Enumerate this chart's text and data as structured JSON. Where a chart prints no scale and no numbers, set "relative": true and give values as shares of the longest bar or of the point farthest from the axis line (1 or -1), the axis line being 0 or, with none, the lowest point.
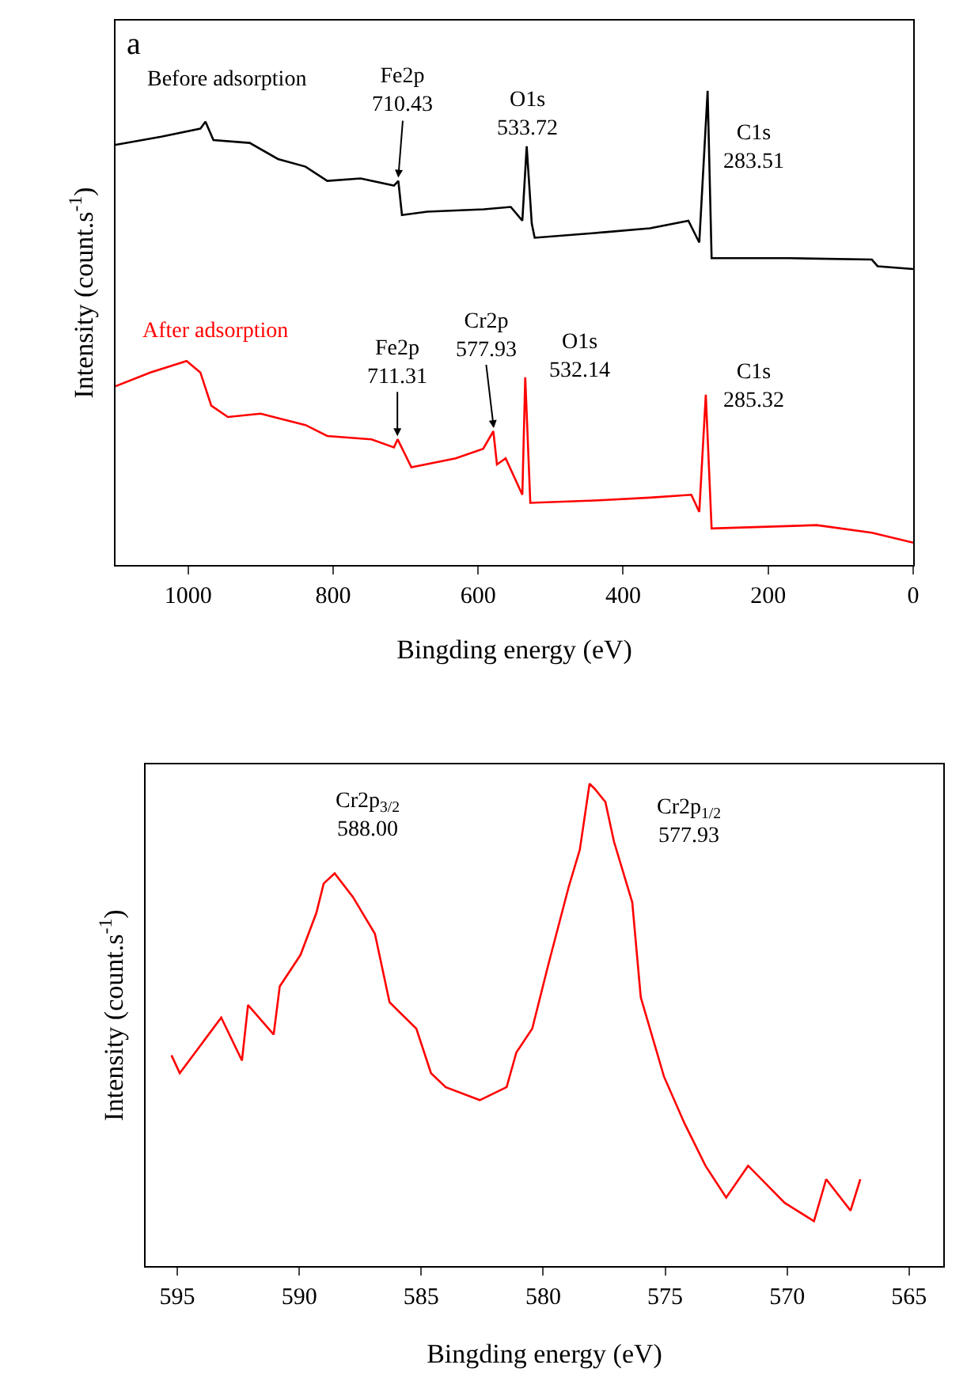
{
  "chart_data": [
    {
      "type": "line",
      "relative": true,
      "xlabel": "Bingding energy (eV)",
      "ylabel": "Intensity (count.s$^{-1}$)",
      "xlim": [
        1100,
        0
      ],
      "xticks": [
        1000,
        800,
        600,
        400,
        200,
        0
      ],
      "annotations": [
        "a",
        {
          "text": "Fe2p\n710.43",
          "x": 710.43,
          "y": 0.81
        },
        {
          "text": "O1s\n533.72",
          "x": 533.72,
          "y": 0.883
        },
        {
          "text": "C1s\n283.51",
          "x": 283.51,
          "y": 1.0
        },
        {
          "text": "Fe2p\n711.31",
          "x": 711.31,
          "y": 0.265
        },
        {
          "text": "Cr2p\n577.93",
          "x": 577.93,
          "y": 0.282
        },
        {
          "text": "O1s\n532.14",
          "x": 532.14,
          "y": 0.396
        },
        {
          "text": "C1s\n285.32",
          "x": 285.32,
          "y": 0.359
        }
      ],
      "series": [
        {
          "name": "Before adsorption",
          "color": "#000000",
          "x": [
            1100,
            1037,
            983,
            976,
            965,
            915,
            876,
            838,
            808,
            762,
            716,
            710,
            705,
            670,
            592,
            555,
            539,
            533,
            526,
            522,
            439,
            363,
            310,
            295,
            283.5,
            278,
            171,
            57,
            49,
            0
          ],
          "values": [
            0.886,
            0.903,
            0.92,
            0.935,
            0.896,
            0.89,
            0.856,
            0.84,
            0.81,
            0.815,
            0.8,
            0.81,
            0.738,
            0.745,
            0.75,
            0.755,
            0.726,
            0.883,
            0.72,
            0.69,
            0.7,
            0.71,
            0.726,
            0.68,
            1.0,
            0.647,
            0.647,
            0.644,
            0.63,
            0.624
          ]
        },
        {
          "name": "After adsorption",
          "color": "#ff0000",
          "x": [
            1100,
            1052,
            1002,
            983,
            968,
            945,
            900,
            838,
            808,
            747,
            716,
            711,
            692,
            631,
            593,
            579,
            574,
            562,
            539,
            535,
            528,
            439,
            363,
            306,
            295,
            286,
            278,
            133,
            57,
            0
          ],
          "values": [
            0.377,
            0.406,
            0.43,
            0.406,
            0.336,
            0.312,
            0.319,
            0.295,
            0.272,
            0.265,
            0.248,
            0.265,
            0.206,
            0.225,
            0.245,
            0.282,
            0.212,
            0.225,
            0.148,
            0.396,
            0.131,
            0.136,
            0.142,
            0.148,
            0.112,
            0.359,
            0.077,
            0.084,
            0.068,
            0.047
          ]
        }
      ]
    },
    {
      "type": "line",
      "relative": true,
      "xlabel": "Bingding energy (eV)",
      "ylabel": "Intensity (count.s$^{-1}$)",
      "xlim": [
        596.3,
        563.6
      ],
      "xticks": [
        595,
        590,
        585,
        580,
        575,
        570,
        565
      ],
      "annotations": [
        "Cr2p$_{3/2}$\n588.00",
        {
          "text": "Cr2p$_{1/2}$\n577.93",
          "x": 577.93,
          "y": 0.99
        }
      ],
      "series": [
        {
          "color": "#ff0000",
          "x": [
            595.24,
            594.9,
            593.2,
            592.35,
            592.1,
            591.05,
            590.8,
            589.95,
            589.3,
            589.0,
            588.55,
            587.8,
            586.9,
            586.3,
            585.2,
            584.6,
            584.0,
            582.6,
            581.5,
            581.1,
            580.45,
            579.8,
            578.95,
            578.5,
            578.1,
            577.9,
            577.45,
            577.1,
            576.35,
            576.0,
            575.05,
            574.2,
            573.35,
            572.5,
            571.6,
            570.1,
            568.9,
            568.4,
            567.4,
            567.0
          ],
          "values": [
            0.437,
            0.4,
            0.515,
            0.426,
            0.541,
            0.48,
            0.58,
            0.645,
            0.732,
            0.793,
            0.814,
            0.765,
            0.689,
            0.547,
            0.492,
            0.4,
            0.371,
            0.344,
            0.371,
            0.443,
            0.492,
            0.623,
            0.787,
            0.863,
            1.0,
            0.99,
            0.962,
            0.88,
            0.754,
            0.557,
            0.393,
            0.295,
            0.208,
            0.142,
            0.208,
            0.131,
            0.093,
            0.18,
            0.115,
            0.18
          ]
        }
      ]
    }
  ]
}
